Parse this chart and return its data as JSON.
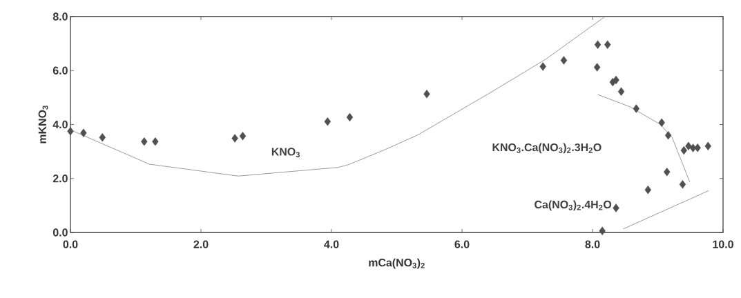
{
  "chart_data": {
    "type": "scatter",
    "xlabel": "mCa(NO$_{3}$)$_{2}$",
    "ylabel": "mKNO$_{3}$",
    "xlim": [
      0,
      10
    ],
    "ylim": [
      0,
      8
    ],
    "xticks": [
      {
        "value": 0,
        "label": "0.0"
      },
      {
        "value": 2,
        "label": "2.0"
      },
      {
        "value": 4,
        "label": "4.0"
      },
      {
        "value": 6,
        "label": "6.0"
      },
      {
        "value": 8,
        "label": "8.0"
      },
      {
        "value": 10,
        "label": "10.0"
      }
    ],
    "yticks": [
      {
        "value": 0,
        "label": "0.0"
      },
      {
        "value": 2,
        "label": "2.0"
      },
      {
        "value": 4,
        "label": "4.0"
      },
      {
        "value": 6,
        "label": "6.0"
      },
      {
        "value": 8,
        "label": "8.0"
      }
    ],
    "grid": false,
    "marker": "diamond",
    "series": [
      {
        "color": "#505050",
        "x": [
          0,
          0.2,
          0.49,
          1.13,
          1.3,
          2.52,
          2.64,
          3.94,
          4.28,
          5.46,
          7.24,
          7.56,
          8.08,
          8.23,
          8.07,
          8.31,
          8.36,
          8.44,
          8.67,
          9.06,
          9.16,
          9.4,
          9.47,
          9.54,
          9.61,
          9.77,
          9.14,
          9.38,
          8.85,
          8.36,
          8.15
        ],
        "values": [
          3.75,
          3.69,
          3.52,
          3.37,
          3.37,
          3.49,
          3.57,
          4.11,
          4.27,
          5.13,
          6.15,
          6.38,
          6.96,
          6.96,
          6.12,
          5.57,
          5.65,
          5.22,
          4.59,
          4.07,
          3.6,
          3.04,
          3.2,
          3.13,
          3.14,
          3.2,
          2.24,
          1.78,
          1.58,
          0.91,
          0.06
        ]
      },
      {
        "type": "line",
        "marker": "none",
        "color": "#808080",
        "x": [
          0,
          1.21,
          2.57,
          4.1,
          4.27,
          4.82,
          5.32,
          6.4,
          7.29,
          8.18
        ],
        "values": [
          3.8,
          2.53,
          2.09,
          2.41,
          2.52,
          3.07,
          3.61,
          5.13,
          6.43,
          7.98
        ]
      },
      {
        "type": "line",
        "marker": "none",
        "color": "#808080",
        "x": [
          8.08,
          8.58,
          9.04,
          9.22,
          9.49
        ],
        "values": [
          5.11,
          4.65,
          4.0,
          3.52,
          1.87
        ]
      },
      {
        "type": "line",
        "marker": "none",
        "color": "#808080",
        "x": [
          8.47,
          9.78
        ],
        "values": [
          0.13,
          1.55
        ]
      }
    ],
    "annotations": [
      "KNO$_{3}$",
      "KNO$_{3}$.Ca(NO$_{3}$)$_{2}$.3H$_{2}$O",
      "Ca(NO$_{3}$)$_{2}$.4H$_{2}$O"
    ]
  }
}
